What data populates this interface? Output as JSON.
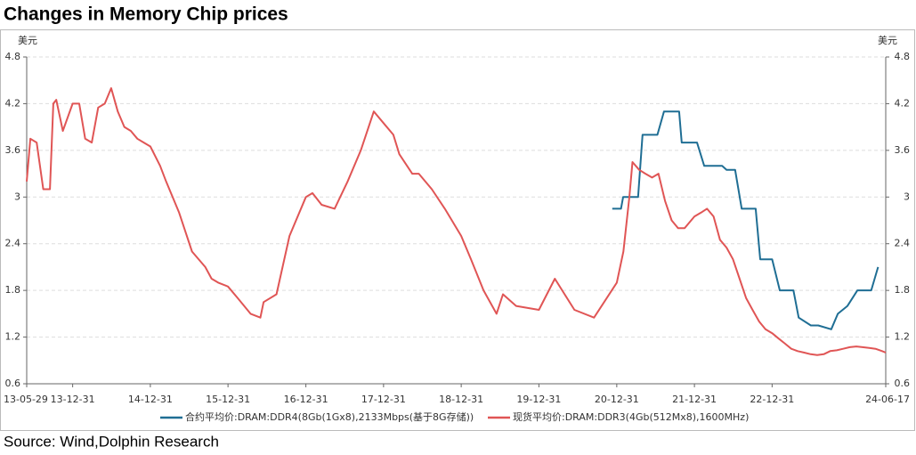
{
  "chart_data": {
    "type": "line",
    "title": "Changes in Memory Chip prices",
    "y_label": "美元",
    "y2_label": "美元",
    "source": "Source: Wind,Dolphin Research",
    "xlim": [
      "13-05-29",
      "24-06-17"
    ],
    "xticks": [
      "13-05-29",
      "13-12-31",
      "14-12-31",
      "15-12-31",
      "16-12-31",
      "17-12-31",
      "18-12-31",
      "19-12-31",
      "20-12-31",
      "21-12-31",
      "22-12-31",
      "24-06-17"
    ],
    "ylim": [
      0.6,
      4.8
    ],
    "yticks": [
      0.6,
      1.2,
      1.8,
      2.4,
      3,
      3.6,
      4.2,
      4.8
    ],
    "y2lim": [
      0.6,
      4.8
    ],
    "y2ticks": [
      0.6,
      1.2,
      1.8,
      2.4,
      3,
      3.6,
      4.2,
      4.8
    ],
    "grid": true,
    "legend": "bottom",
    "series": [
      {
        "name": "合约平均价:DRAM:DDR4(8Gb(1Gx8),2133Mbps(基于8G存储))",
        "color": "#1f6e94",
        "x": [
          "20-12-10",
          "21-01-20",
          "21-01-30",
          "21-04-10",
          "21-05-01",
          "21-07-10",
          "21-08-10",
          "21-10-20",
          "21-11-01",
          "22-01-12",
          "22-02-15",
          "22-05-10",
          "22-05-31",
          "22-07-10",
          "22-08-10",
          "22-10-15",
          "22-11-05",
          "22-12-31",
          "23-02-05",
          "23-04-10",
          "23-05-05",
          "23-07-01",
          "23-08-05",
          "23-10-05",
          "23-11-05",
          "23-12-20",
          "24-02-05",
          "24-04-10",
          "24-05-12"
        ],
        "values": [
          2.85,
          2.85,
          3.0,
          3.0,
          3.8,
          3.8,
          4.1,
          4.1,
          3.7,
          3.7,
          3.4,
          3.4,
          3.35,
          3.35,
          2.85,
          2.85,
          2.2,
          2.2,
          1.8,
          1.8,
          1.45,
          1.35,
          1.35,
          1.3,
          1.5,
          1.6,
          1.8,
          1.8,
          2.1
        ]
      },
      {
        "name": "现货平均价:DRAM:DDR3(4Gb(512Mx8),1600MHz)",
        "color": "#e05555",
        "axis": "y2",
        "x": [
          "13-05-29",
          "13-06-15",
          "13-07-15",
          "13-08-15",
          "13-09-15",
          "13-10-01",
          "13-10-15",
          "13-11-15",
          "13-12-31",
          "14-01-31",
          "14-02-28",
          "14-03-31",
          "14-04-30",
          "14-05-31",
          "14-06-30",
          "14-07-31",
          "14-08-31",
          "14-09-30",
          "14-10-31",
          "14-11-30",
          "14-12-31",
          "15-02-15",
          "15-03-15",
          "15-05-15",
          "15-07-15",
          "15-09-15",
          "15-10-15",
          "15-11-15",
          "15-12-31",
          "16-02-15",
          "16-04-15",
          "16-05-31",
          "16-06-15",
          "16-08-15",
          "16-10-15",
          "16-12-31",
          "17-01-31",
          "17-03-15",
          "17-05-15",
          "17-07-15",
          "17-09-15",
          "17-11-15",
          "17-12-31",
          "18-02-15",
          "18-03-15",
          "18-05-15",
          "18-06-15",
          "18-08-15",
          "18-10-15",
          "18-12-31",
          "19-02-15",
          "19-04-15",
          "19-06-15",
          "19-07-15",
          "19-09-15",
          "19-12-31",
          "20-03-15",
          "20-06-15",
          "20-09-15",
          "20-12-31",
          "21-01-31",
          "21-02-28",
          "21-03-15",
          "21-04-15",
          "21-05-15",
          "21-06-15",
          "21-07-15",
          "21-08-15",
          "21-09-15",
          "21-10-15",
          "21-11-15",
          "21-12-31",
          "22-01-31",
          "22-02-28",
          "22-03-31",
          "22-04-30",
          "22-05-31",
          "22-06-30",
          "22-07-31",
          "22-08-31",
          "22-09-30",
          "22-10-31",
          "22-11-30",
          "22-12-31",
          "23-01-31",
          "23-02-28",
          "23-03-31",
          "23-04-30",
          "23-05-31",
          "23-06-30",
          "23-07-31",
          "23-08-31",
          "23-09-30",
          "23-10-31",
          "23-11-30",
          "23-12-31",
          "24-01-31",
          "24-02-29",
          "24-03-31",
          "24-04-30",
          "24-05-31",
          "24-06-17"
        ],
        "values": [
          3.2,
          3.75,
          3.7,
          3.1,
          3.1,
          4.2,
          4.25,
          3.85,
          4.2,
          4.2,
          3.75,
          3.7,
          4.15,
          4.2,
          4.4,
          4.1,
          3.9,
          3.85,
          3.75,
          3.7,
          3.65,
          3.4,
          3.2,
          2.8,
          2.3,
          2.1,
          1.95,
          1.9,
          1.85,
          1.7,
          1.5,
          1.45,
          1.65,
          1.75,
          2.5,
          3.0,
          3.05,
          2.9,
          2.85,
          3.2,
          3.6,
          4.1,
          3.95,
          3.8,
          3.55,
          3.3,
          3.3,
          3.1,
          2.85,
          2.5,
          2.2,
          1.8,
          1.5,
          1.75,
          1.6,
          1.55,
          1.95,
          1.55,
          1.45,
          1.9,
          2.3,
          3.0,
          3.45,
          3.35,
          3.3,
          3.25,
          3.3,
          2.95,
          2.7,
          2.6,
          2.6,
          2.75,
          2.8,
          2.85,
          2.75,
          2.45,
          2.35,
          2.2,
          1.95,
          1.7,
          1.55,
          1.4,
          1.3,
          1.25,
          1.18,
          1.12,
          1.05,
          1.02,
          1.0,
          0.98,
          0.97,
          0.98,
          1.02,
          1.03,
          1.05,
          1.07,
          1.08,
          1.07,
          1.06,
          1.05,
          1.02,
          1.0
        ]
      }
    ]
  }
}
